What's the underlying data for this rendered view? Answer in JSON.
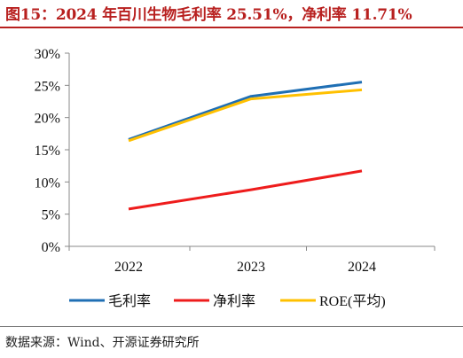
{
  "header": {
    "title": "图15：2024 年百川生物毛利率 25.51%，净利率 11.71%"
  },
  "footer": {
    "source": "数据来源：Wind、开源证券研究所"
  },
  "chart_data": {
    "type": "line",
    "x": [
      "2022",
      "2023",
      "2024"
    ],
    "ylim": [
      0,
      30
    ],
    "yticks": [
      0,
      5,
      10,
      15,
      20,
      25,
      30
    ],
    "ytick_labels": [
      "0%",
      "5%",
      "10%",
      "15%",
      "20%",
      "25%",
      "30%"
    ],
    "y_unit": "%",
    "grid": false,
    "legend_position": "bottom",
    "series": [
      {
        "name": "毛利率",
        "color": "#1f6fb4",
        "values": [
          16.6,
          23.3,
          25.51
        ]
      },
      {
        "name": "净利率",
        "color": "#ee1c1c",
        "values": [
          5.8,
          8.8,
          11.71
        ]
      },
      {
        "name": "ROE(平均)",
        "color": "#ffc000",
        "values": [
          16.4,
          22.9,
          24.3
        ]
      }
    ]
  }
}
